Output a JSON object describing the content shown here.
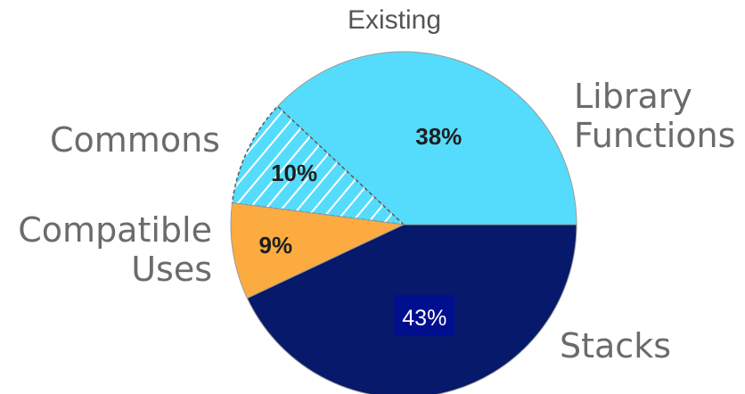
{
  "chart_data": {
    "type": "pie",
    "title": "",
    "slices": [
      {
        "label_lines": [
          "Library",
          "Functions"
        ],
        "value": 38,
        "data_label": "38%",
        "color": "#55dcfc",
        "hatched": false
      },
      {
        "label_lines": [
          "Commons"
        ],
        "value": 10,
        "data_label": "10%",
        "color": "#55dcfc",
        "hatched": true
      },
      {
        "label_lines": [
          "Compatible",
          "Uses"
        ],
        "value": 9,
        "data_label": "9%",
        "color": "#fbab40",
        "hatched": false
      },
      {
        "label_lines": [
          "Stacks"
        ],
        "value": 43,
        "data_label": "43%",
        "color": "#06196a",
        "hatched": false
      }
    ],
    "group_label": "Existing",
    "start_angle_deg": 0,
    "direction": "counterclockwise",
    "legend": "none",
    "colors": {
      "label_text": "#6b6b6b",
      "value_text_dark": "#1e1e1e",
      "value_text_light": "#ffffff",
      "value_box_stacks": "#000f8e",
      "outline": "#9a9a9a"
    }
  }
}
